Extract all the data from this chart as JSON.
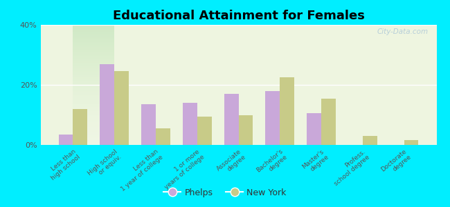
{
  "title": "Educational Attainment for Females",
  "categories": [
    "Less than\nhigh school",
    "High school\nor equiv.",
    "Less than\n1 year of college",
    "1 or more\nyears of college",
    "Associate\ndegree",
    "Bachelor's\ndegree",
    "Master's\ndegree",
    "Profess.\nschool degree",
    "Doctorate\ndegree"
  ],
  "phelps": [
    3.5,
    27.0,
    13.5,
    14.0,
    17.0,
    18.0,
    10.5,
    0.0,
    0.0
  ],
  "new_york": [
    12.0,
    24.5,
    5.5,
    9.5,
    10.0,
    22.5,
    15.5,
    3.0,
    1.5
  ],
  "phelps_color": "#c9a8d9",
  "new_york_color": "#c8cb88",
  "bg_outer": "#00eeff",
  "ylim": [
    0,
    40
  ],
  "yticks": [
    0,
    20,
    40
  ],
  "ytick_labels": [
    "0%",
    "20%",
    "40%"
  ],
  "bar_width": 0.35,
  "watermark": "City-Data.com"
}
